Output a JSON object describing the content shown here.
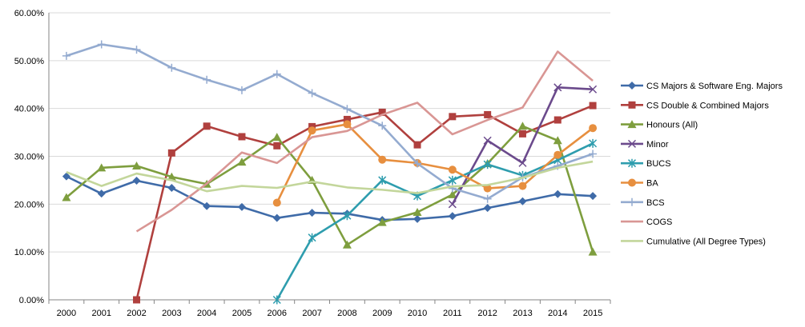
{
  "chart_data": {
    "type": "line",
    "title": "",
    "xlabel": "",
    "ylabel": "",
    "ylim": [
      0,
      60
    ],
    "y_tick_step": 10,
    "y_tick_format": "percent_2dp",
    "grid": "horizontal",
    "legend_position": "right",
    "categories": [
      "2000",
      "2001",
      "2002",
      "2003",
      "2004",
      "2005",
      "2006",
      "2007",
      "2008",
      "2009",
      "2010",
      "2011",
      "2012",
      "2013",
      "2014",
      "2015"
    ],
    "series": [
      {
        "name": "CS Majors & Software Eng. Majors",
        "color": "#3F6BA8",
        "marker": "diamond",
        "values": [
          25.8,
          22.2,
          24.9,
          23.4,
          19.6,
          19.4,
          17.1,
          18.2,
          18.0,
          16.7,
          16.9,
          17.5,
          19.2,
          20.6,
          22.1,
          21.7
        ]
      },
      {
        "name": "CS Double & Combined Majors",
        "color": "#B0403E",
        "marker": "square",
        "values": [
          null,
          null,
          0.0,
          30.7,
          36.3,
          34.1,
          32.2,
          36.2,
          37.7,
          39.2,
          32.4,
          38.3,
          38.7,
          34.7,
          37.6,
          40.6
        ]
      },
      {
        "name": "Honours (All)",
        "color": "#7E9E3E",
        "marker": "triangle",
        "values": [
          21.4,
          27.6,
          28.0,
          25.7,
          24.2,
          28.8,
          34.0,
          25.0,
          11.5,
          16.2,
          18.3,
          22.0,
          28.5,
          36.3,
          33.3,
          10.0
        ]
      },
      {
        "name": "Minor",
        "color": "#6B4A8C",
        "marker": "x",
        "values": [
          null,
          null,
          null,
          null,
          null,
          null,
          null,
          null,
          null,
          null,
          null,
          20.0,
          33.3,
          28.6,
          44.4,
          44.0
        ]
      },
      {
        "name": "BUCS",
        "color": "#2E9DAE",
        "marker": "star",
        "values": [
          null,
          null,
          null,
          null,
          null,
          null,
          0.0,
          13.0,
          17.6,
          25.0,
          21.7,
          25.0,
          28.3,
          26.0,
          29.2,
          32.7
        ]
      },
      {
        "name": "BA",
        "color": "#E78F3F",
        "marker": "circle",
        "values": [
          null,
          null,
          null,
          null,
          null,
          null,
          20.3,
          35.4,
          36.7,
          29.3,
          28.6,
          27.2,
          23.3,
          23.8,
          30.3,
          35.9
        ]
      },
      {
        "name": "BCS",
        "color": "#94ABD0",
        "marker": "plus",
        "values": [
          51.0,
          53.4,
          52.3,
          48.5,
          46.0,
          43.8,
          47.2,
          43.2,
          39.9,
          36.4,
          28.5,
          23.3,
          21.1,
          25.6,
          28.0,
          30.5
        ]
      },
      {
        "name": "COGS",
        "color": "#D99694",
        "marker": "none",
        "values": [
          null,
          null,
          14.3,
          18.8,
          24.3,
          30.8,
          28.6,
          34.0,
          35.3,
          38.7,
          41.2,
          34.6,
          37.6,
          40.2,
          51.9,
          45.8
        ]
      },
      {
        "name": "Cumulative (All Degree Types)",
        "color": "#C3D69B",
        "marker": "none",
        "values": [
          26.7,
          23.8,
          26.4,
          25.0,
          22.7,
          23.8,
          23.4,
          24.7,
          23.5,
          23.0,
          22.3,
          23.7,
          24.0,
          25.5,
          27.6,
          28.9
        ]
      }
    ]
  }
}
